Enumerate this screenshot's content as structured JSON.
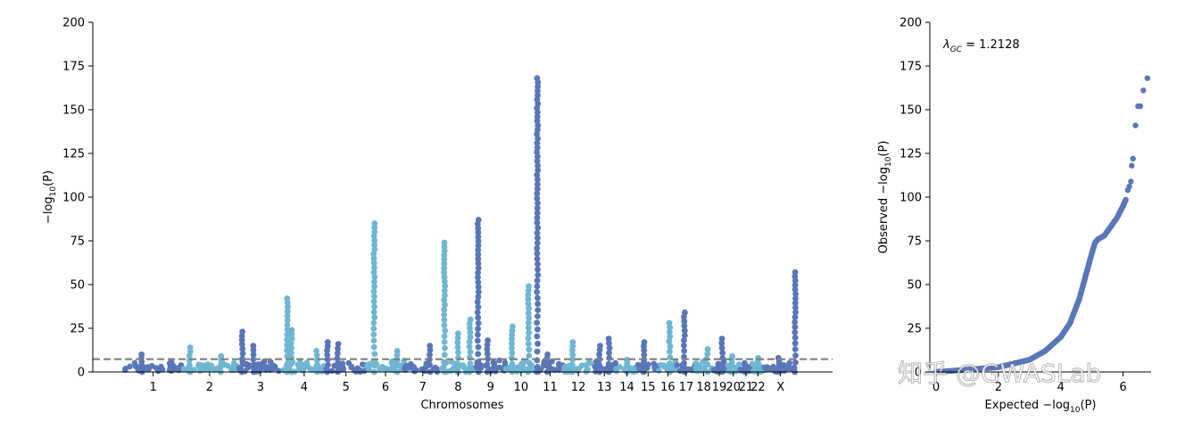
{
  "colors": {
    "chrom_odd": "#5876b8",
    "chrom_even": "#6fb6d2",
    "qq_points": "#5876b8",
    "threshold_line": "#7f7f7f"
  },
  "watermark": "知乎 @GWASLab",
  "chart_data": [
    {
      "type": "scatter",
      "subtype": "manhattan",
      "xlabel": "Chromosomes",
      "ylabel": "−log10(P)",
      "ylabel_parts": {
        "prefix": "−log",
        "sub": "10",
        "suffix": "(P)"
      },
      "ylim": [
        0,
        200
      ],
      "yticks": [
        0,
        25,
        50,
        75,
        100,
        125,
        150,
        175,
        200
      ],
      "threshold": 7.3,
      "grid": false,
      "legend": "none",
      "chromosomes": [
        {
          "label": "1",
          "start": 0.0,
          "end": 1.0,
          "base": 5,
          "peaks": [
            [
              0.3,
              10
            ]
          ]
        },
        {
          "label": "2",
          "start": 1.0,
          "end": 2.0,
          "base": 5,
          "peaks": [
            [
              0.15,
              14
            ],
            [
              0.7,
              9
            ]
          ]
        },
        {
          "label": "3",
          "start": 2.0,
          "end": 2.8,
          "base": 5,
          "peaks": [
            [
              0.1,
              23
            ],
            [
              0.35,
              15
            ]
          ]
        },
        {
          "label": "4",
          "start": 2.8,
          "end": 3.55,
          "base": 5,
          "peaks": [
            [
              0.1,
              42
            ],
            [
              0.2,
              24
            ],
            [
              0.8,
              12
            ]
          ]
        },
        {
          "label": "5",
          "start": 3.55,
          "end": 4.28,
          "base": 5,
          "peaks": [
            [
              0.05,
              17
            ],
            [
              0.3,
              16
            ]
          ]
        },
        {
          "label": "6",
          "start": 4.28,
          "end": 4.95,
          "base": 5,
          "peaks": [
            [
              0.2,
              85
            ],
            [
              0.8,
              12
            ]
          ]
        },
        {
          "label": "7",
          "start": 4.95,
          "end": 5.6,
          "base": 5,
          "peaks": [
            [
              0.7,
              15
            ]
          ]
        },
        {
          "label": "8",
          "start": 5.6,
          "end": 6.2,
          "base": 5,
          "peaks": [
            [
              0.1,
              74
            ],
            [
              0.5,
              22
            ],
            [
              0.85,
              30
            ]
          ]
        },
        {
          "label": "9",
          "start": 6.2,
          "end": 6.75,
          "base": 5,
          "peaks": [
            [
              0.1,
              87
            ],
            [
              0.4,
              18
            ]
          ]
        },
        {
          "label": "10",
          "start": 6.75,
          "end": 7.28,
          "base": 5,
          "peaks": [
            [
              0.2,
              26
            ],
            [
              0.75,
              49
            ]
          ]
        },
        {
          "label": "11",
          "start": 7.28,
          "end": 7.78,
          "base": 5,
          "peaks": [
            [
              0.05,
              168
            ],
            [
              0.4,
              10
            ]
          ]
        },
        {
          "label": "12",
          "start": 7.78,
          "end": 8.28,
          "base": 5,
          "peaks": [
            [
              0.3,
              17
            ]
          ]
        },
        {
          "label": "13",
          "start": 8.28,
          "end": 8.7,
          "base": 5,
          "peaks": [
            [
              0.3,
              15
            ],
            [
              0.7,
              19
            ]
          ]
        },
        {
          "label": "14",
          "start": 8.7,
          "end": 9.08,
          "base": 3,
          "peaks": [
            [
              0.5,
              7
            ]
          ]
        },
        {
          "label": "15",
          "start": 9.08,
          "end": 9.45,
          "base": 5,
          "peaks": [
            [
              0.3,
              17
            ]
          ]
        },
        {
          "label": "16",
          "start": 9.45,
          "end": 9.78,
          "base": 5,
          "peaks": [
            [
              0.6,
              28
            ]
          ]
        },
        {
          "label": "17",
          "start": 9.78,
          "end": 10.1,
          "base": 5,
          "peaks": [
            [
              0.4,
              34
            ]
          ]
        },
        {
          "label": "18",
          "start": 10.1,
          "end": 10.4,
          "base": 5,
          "peaks": [
            [
              0.7,
              13
            ]
          ]
        },
        {
          "label": "19",
          "start": 10.4,
          "end": 10.65,
          "base": 5,
          "peaks": [
            [
              0.7,
              19
            ]
          ]
        },
        {
          "label": "20",
          "start": 10.65,
          "end": 10.9,
          "base": 5,
          "peaks": [
            [
              0.4,
              9
            ]
          ]
        },
        {
          "label": "21",
          "start": 10.9,
          "end": 11.1,
          "base": 3,
          "peaks": [
            [
              0.4,
              5
            ]
          ]
        },
        {
          "label": "22",
          "start": 11.1,
          "end": 11.32,
          "base": 4,
          "peaks": [
            [
              0.5,
              8
            ]
          ]
        },
        {
          "label": "X",
          "start": 11.32,
          "end": 11.9,
          "base": 4,
          "peaks": [
            [
              0.45,
              8
            ],
            [
              0.95,
              57
            ]
          ]
        }
      ]
    },
    {
      "type": "scatter",
      "subtype": "qq",
      "xlabel": "Expected −log10(P)",
      "xlabel_parts": {
        "prefix": "Expected −log",
        "sub": "10",
        "suffix": "(P)"
      },
      "ylabel": "Observed −log10(P)",
      "ylabel_parts": {
        "prefix": "Observed −log",
        "sub": "10",
        "suffix": "(P)"
      },
      "xlim": [
        -0.2,
        6.9
      ],
      "ylim": [
        0,
        200
      ],
      "xticks": [
        0,
        2,
        4,
        6
      ],
      "yticks": [
        0,
        25,
        50,
        75,
        100,
        125,
        150,
        175,
        200
      ],
      "annotation_parts": {
        "prefix": "λ",
        "sub": "GC",
        "suffix": " = 1.2128"
      },
      "grid": false,
      "legend": "none",
      "curve": [
        [
          0.0,
          0.0
        ],
        [
          1.0,
          1.3
        ],
        [
          2.0,
          2.7
        ],
        [
          3.0,
          7
        ],
        [
          3.5,
          12
        ],
        [
          4.0,
          20
        ],
        [
          4.3,
          28
        ],
        [
          4.6,
          42
        ],
        [
          4.8,
          55
        ],
        [
          5.0,
          68
        ],
        [
          5.1,
          74
        ],
        [
          5.2,
          76
        ],
        [
          5.4,
          78
        ],
        [
          5.6,
          83
        ],
        [
          5.8,
          88
        ],
        [
          6.0,
          95
        ],
        [
          6.1,
          99
        ]
      ],
      "outliers": [
        [
          6.15,
          104
        ],
        [
          6.2,
          106
        ],
        [
          6.25,
          109
        ],
        [
          6.28,
          118
        ],
        [
          6.32,
          122
        ],
        [
          6.4,
          141
        ],
        [
          6.48,
          152
        ],
        [
          6.55,
          152
        ],
        [
          6.65,
          161
        ],
        [
          6.78,
          168
        ]
      ]
    }
  ]
}
